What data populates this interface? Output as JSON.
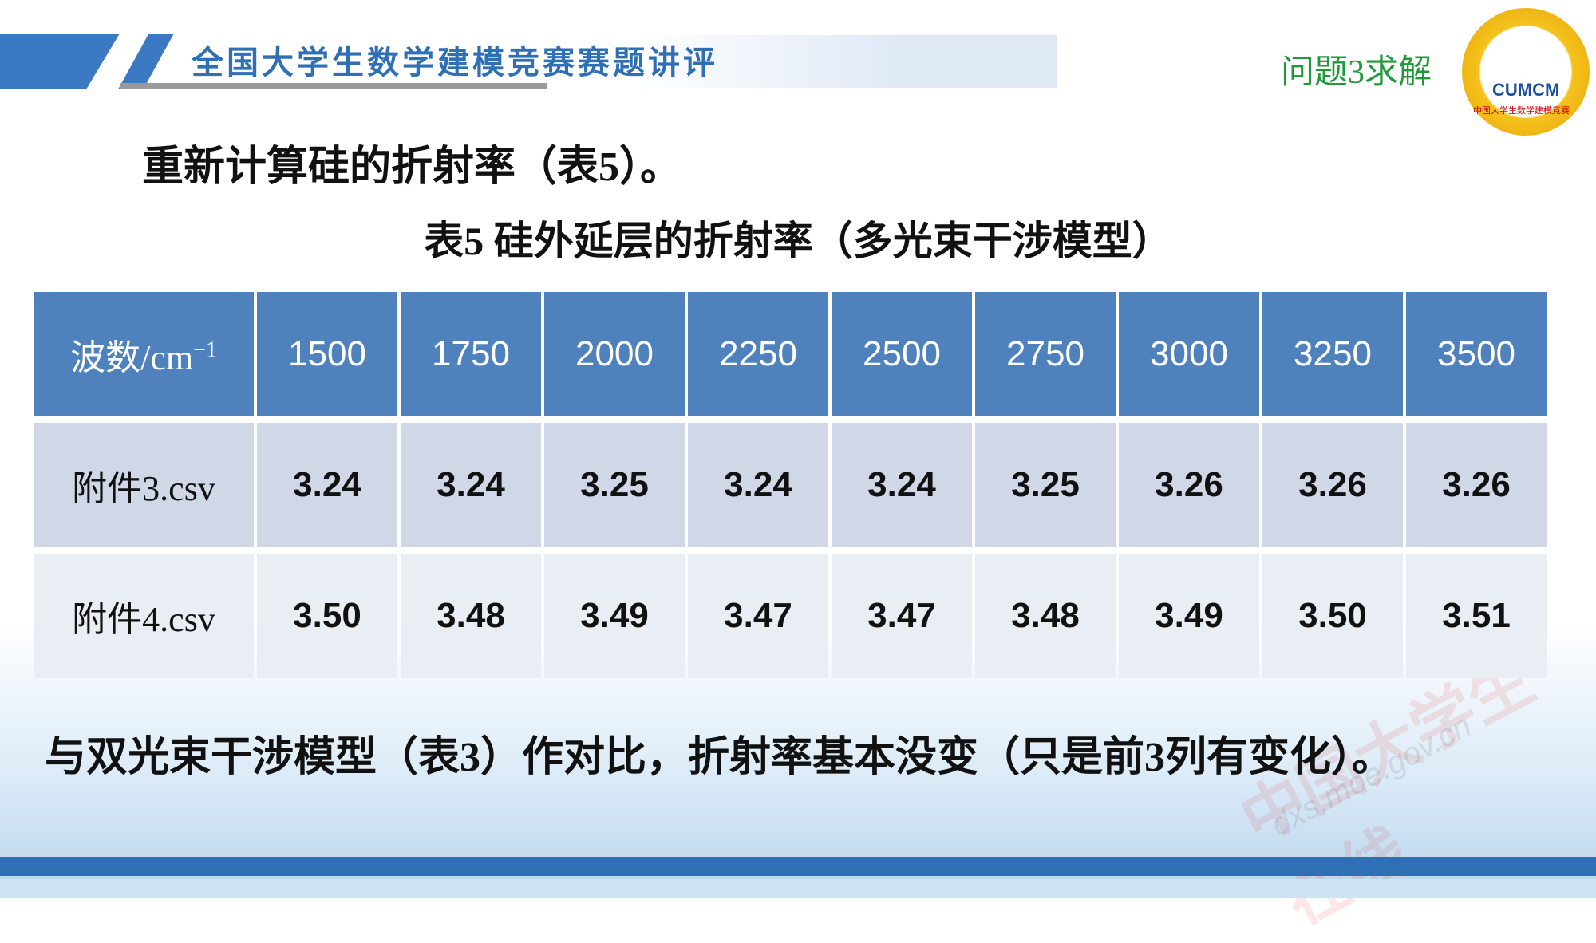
{
  "header": {
    "title": "全国大学生数学建模竞赛赛题讲评",
    "section": "问题3求解",
    "logo": "CUMCM",
    "logo_subtitle": "中国大学生数学建模竞赛"
  },
  "intro": "重新计算硅的折射率（表5）。",
  "table": {
    "caption": "表5  硅外延层的折射率（多光束干涉模型）",
    "header": {
      "label": "波数/cm",
      "superscript": "−1",
      "columns": [
        "1500",
        "1750",
        "2000",
        "2250",
        "2500",
        "2750",
        "3000",
        "3250",
        "3500"
      ]
    },
    "rows": [
      {
        "label": "附件3.csv",
        "values": [
          "3.24",
          "3.24",
          "3.25",
          "3.24",
          "3.24",
          "3.25",
          "3.26",
          "3.26",
          "3.26"
        ]
      },
      {
        "label": "附件4.csv",
        "values": [
          "3.50",
          "3.48",
          "3.49",
          "3.47",
          "3.47",
          "3.48",
          "3.49",
          "3.50",
          "3.51"
        ]
      }
    ]
  },
  "conclusion": "与双光束干涉模型（表3）作对比，折射率基本没变（只是前3列有变化）。",
  "watermark": {
    "name": "中国大学生在线",
    "url": "dxs.moe.gov.cn"
  }
}
